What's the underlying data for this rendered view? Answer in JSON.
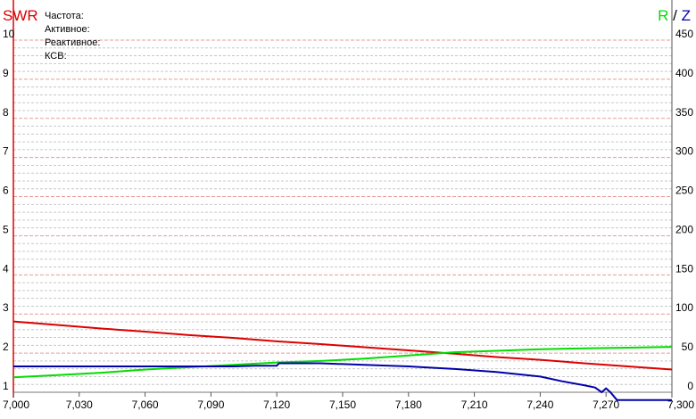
{
  "chart_data": {
    "type": "line",
    "header": {
      "swr_label": "SWR",
      "r_label": "R",
      "slash": " / ",
      "z_label": "Z"
    },
    "info_labels": [
      "Частота:",
      "Активное:",
      "Реактивное:",
      "КСВ:"
    ],
    "x_axis": {
      "range": [
        7000,
        7300
      ],
      "ticks": [
        7000,
        7030,
        7060,
        7090,
        7120,
        7150,
        7180,
        7210,
        7240,
        7270,
        7300
      ],
      "tick_labels": [
        "7,000",
        "7,030",
        "7,060",
        "7,090",
        "7,120",
        "7,150",
        "7,180",
        "7,210",
        "7,240",
        "7,270",
        "7,300"
      ]
    },
    "y_left": {
      "name": "SWR",
      "range": [
        1,
        10
      ],
      "ticks": [
        1,
        2,
        3,
        4,
        5,
        6,
        7,
        8,
        9,
        10
      ],
      "tick_labels": [
        "1",
        "2",
        "3",
        "4",
        "5",
        "6",
        "7",
        "8",
        "9",
        "10"
      ]
    },
    "y_right": {
      "name": "R / Z",
      "range": [
        0,
        450
      ],
      "ticks": [
        0,
        50,
        100,
        150,
        200,
        250,
        300,
        350,
        400,
        450
      ],
      "tick_labels": [
        "0",
        "50",
        "100",
        "150",
        "200",
        "250",
        "300",
        "350",
        "400",
        "450"
      ]
    },
    "grid": true,
    "colors": {
      "swr": "#dd0000",
      "r": "#00dd00",
      "z": "#0000aa",
      "grid_major": "#e89a9a",
      "grid_minor": "#c8c8c8",
      "axis_left": "#dd0000",
      "axis_right": "#555555",
      "slash": "#000000"
    },
    "series": [
      {
        "key": "swr",
        "axis": "left",
        "x": [
          7000,
          7020,
          7040,
          7060,
          7080,
          7100,
          7120,
          7140,
          7160,
          7180,
          7200,
          7220,
          7240,
          7260,
          7280,
          7300
        ],
        "values": [
          2.81,
          2.72,
          2.63,
          2.55,
          2.46,
          2.39,
          2.3,
          2.23,
          2.15,
          2.07,
          1.99,
          1.9,
          1.83,
          1.74,
          1.66,
          1.58
        ]
      },
      {
        "key": "r",
        "axis": "right",
        "x": [
          7000,
          7020,
          7040,
          7060,
          7080,
          7100,
          7120,
          7140,
          7160,
          7180,
          7200,
          7220,
          7240,
          7260,
          7280,
          7300
        ],
        "values": [
          19,
          22,
          25,
          29,
          32,
          35,
          38,
          40,
          43,
          47,
          51,
          53,
          55,
          56,
          57,
          58
        ]
      },
      {
        "key": "z",
        "axis": "right",
        "x": [
          7000,
          7020,
          7040,
          7060,
          7080,
          7100,
          7110,
          7120,
          7121,
          7140,
          7160,
          7180,
          7200,
          7220,
          7240,
          7250,
          7260,
          7265,
          7268,
          7270,
          7272,
          7275,
          7280,
          7300
        ],
        "values": [
          33,
          33,
          33,
          33,
          33,
          33,
          34,
          34,
          37,
          37,
          35,
          33,
          30,
          26,
          20,
          14,
          9,
          6,
          0,
          5,
          0,
          -10,
          -10,
          -10
        ]
      }
    ]
  }
}
